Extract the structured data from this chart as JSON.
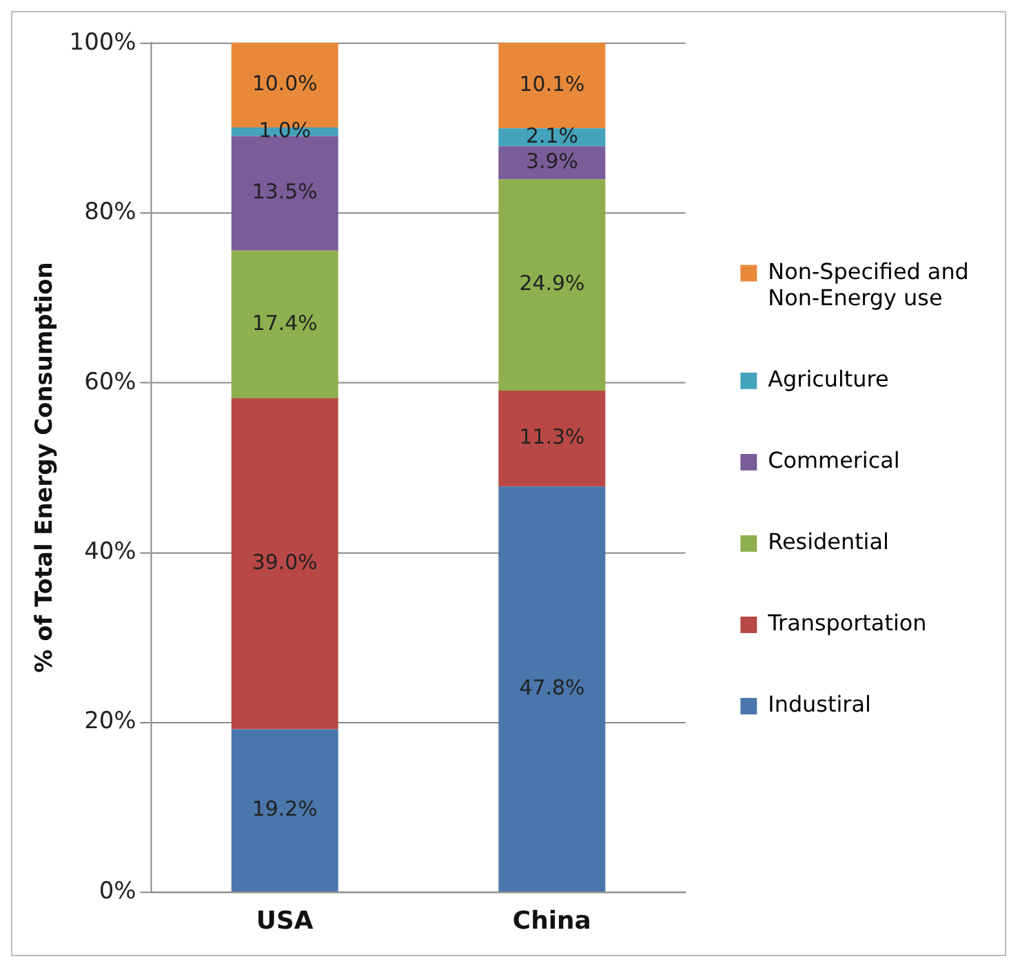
{
  "chart_data": {
    "type": "bar",
    "stacked": true,
    "ylabel": "% of Total Energy Consumption",
    "categories": [
      "USA",
      "China"
    ],
    "ylim": [
      0,
      100.1
    ],
    "yticks": [
      {
        "value": 0,
        "label": "0%"
      },
      {
        "value": 20,
        "label": "20%"
      },
      {
        "value": 40,
        "label": "40%"
      },
      {
        "value": 60,
        "label": "60%"
      },
      {
        "value": 80,
        "label": "80%"
      },
      {
        "value": 100,
        "label": "100%"
      }
    ],
    "grid": "y",
    "legend": "right",
    "series": [
      {
        "name": "Industiral",
        "color": "#4a76ab",
        "values": [
          19.2,
          47.8
        ],
        "value_labels": [
          "19.2%",
          "47.8%"
        ]
      },
      {
        "name": "Transportation",
        "color": "#b84845",
        "values": [
          39.0,
          11.3
        ],
        "value_labels": [
          "39.0%",
          "11.3%"
        ]
      },
      {
        "name": "Residential",
        "color": "#8fb04f",
        "values": [
          17.4,
          24.9
        ],
        "value_labels": [
          "17.4%",
          "24.9%"
        ]
      },
      {
        "name": "Commerical",
        "color": "#7a5c99",
        "values": [
          13.5,
          3.9
        ],
        "value_labels": [
          "13.5%",
          "3.9%"
        ]
      },
      {
        "name": "Agriculture",
        "color": "#44a3bb",
        "values": [
          1.0,
          2.1
        ],
        "value_labels": [
          "1.0%",
          "2.1%"
        ]
      },
      {
        "name": "Non-Specified and Non-Energy use",
        "color": "#e8893a",
        "values": [
          10.0,
          10.1
        ],
        "value_labels": [
          "10.0%",
          "10.1%"
        ]
      }
    ]
  }
}
